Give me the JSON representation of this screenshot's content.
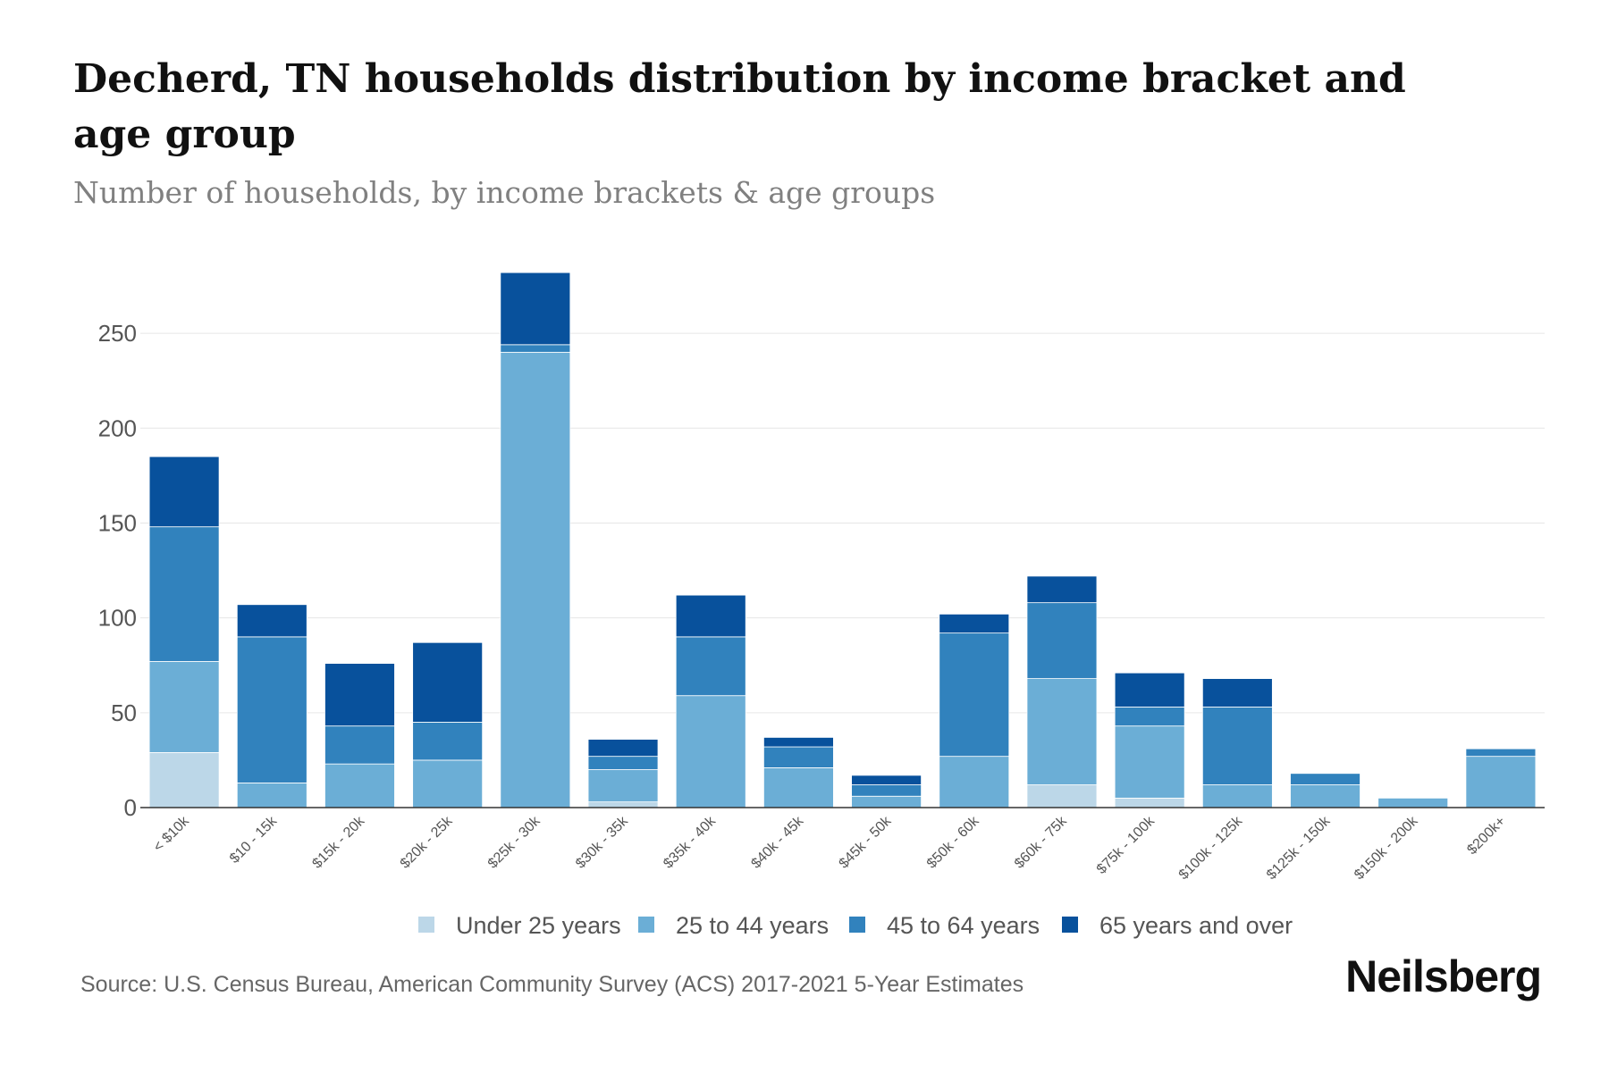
{
  "title": "Decherd, TN households distribution by income bracket and age group",
  "subtitle": "Number of households, by income brackets & age groups",
  "source": "Source: U.S. Census Bureau, American Community Survey (ACS) 2017-2021 5-Year Estimates",
  "brand": "Neilsberg",
  "chart_data": {
    "type": "bar",
    "stacked": true,
    "categories": [
      "< $10k",
      "$10 - 15k",
      "$15k - 20k",
      "$20k - 25k",
      "$25k - 30k",
      "$30k - 35k",
      "$35k - 40k",
      "$40k - 45k",
      "$45k - 50k",
      "$50k - 60k",
      "$60k - 75k",
      "$75k - 100k",
      "$100k - 125k",
      "$125k - 150k",
      "$150k - 200k",
      "$200k+"
    ],
    "series": [
      {
        "name": "Under 25 years",
        "color": "#bcd7e8",
        "values": [
          29,
          0,
          0,
          0,
          0,
          3,
          0,
          0,
          0,
          0,
          12,
          5,
          0,
          0,
          0,
          0
        ]
      },
      {
        "name": "25 to 44 years",
        "color": "#6baed6",
        "values": [
          48,
          13,
          23,
          25,
          240,
          17,
          59,
          21,
          6,
          27,
          56,
          38,
          12,
          12,
          5,
          27
        ]
      },
      {
        "name": "45 to 64 years",
        "color": "#3182bd",
        "values": [
          71,
          77,
          20,
          20,
          4,
          7,
          31,
          11,
          6,
          65,
          40,
          10,
          41,
          6,
          0,
          4
        ]
      },
      {
        "name": "65 years and over",
        "color": "#08519c",
        "values": [
          37,
          17,
          33,
          42,
          38,
          9,
          22,
          5,
          5,
          10,
          14,
          18,
          15,
          0,
          0,
          0
        ]
      }
    ],
    "yticks": [
      0,
      50,
      100,
      150,
      200,
      250
    ],
    "ylim": [
      0,
      283
    ],
    "xlabel": "",
    "ylabel": "",
    "grid": true,
    "legend_position": "bottom"
  }
}
